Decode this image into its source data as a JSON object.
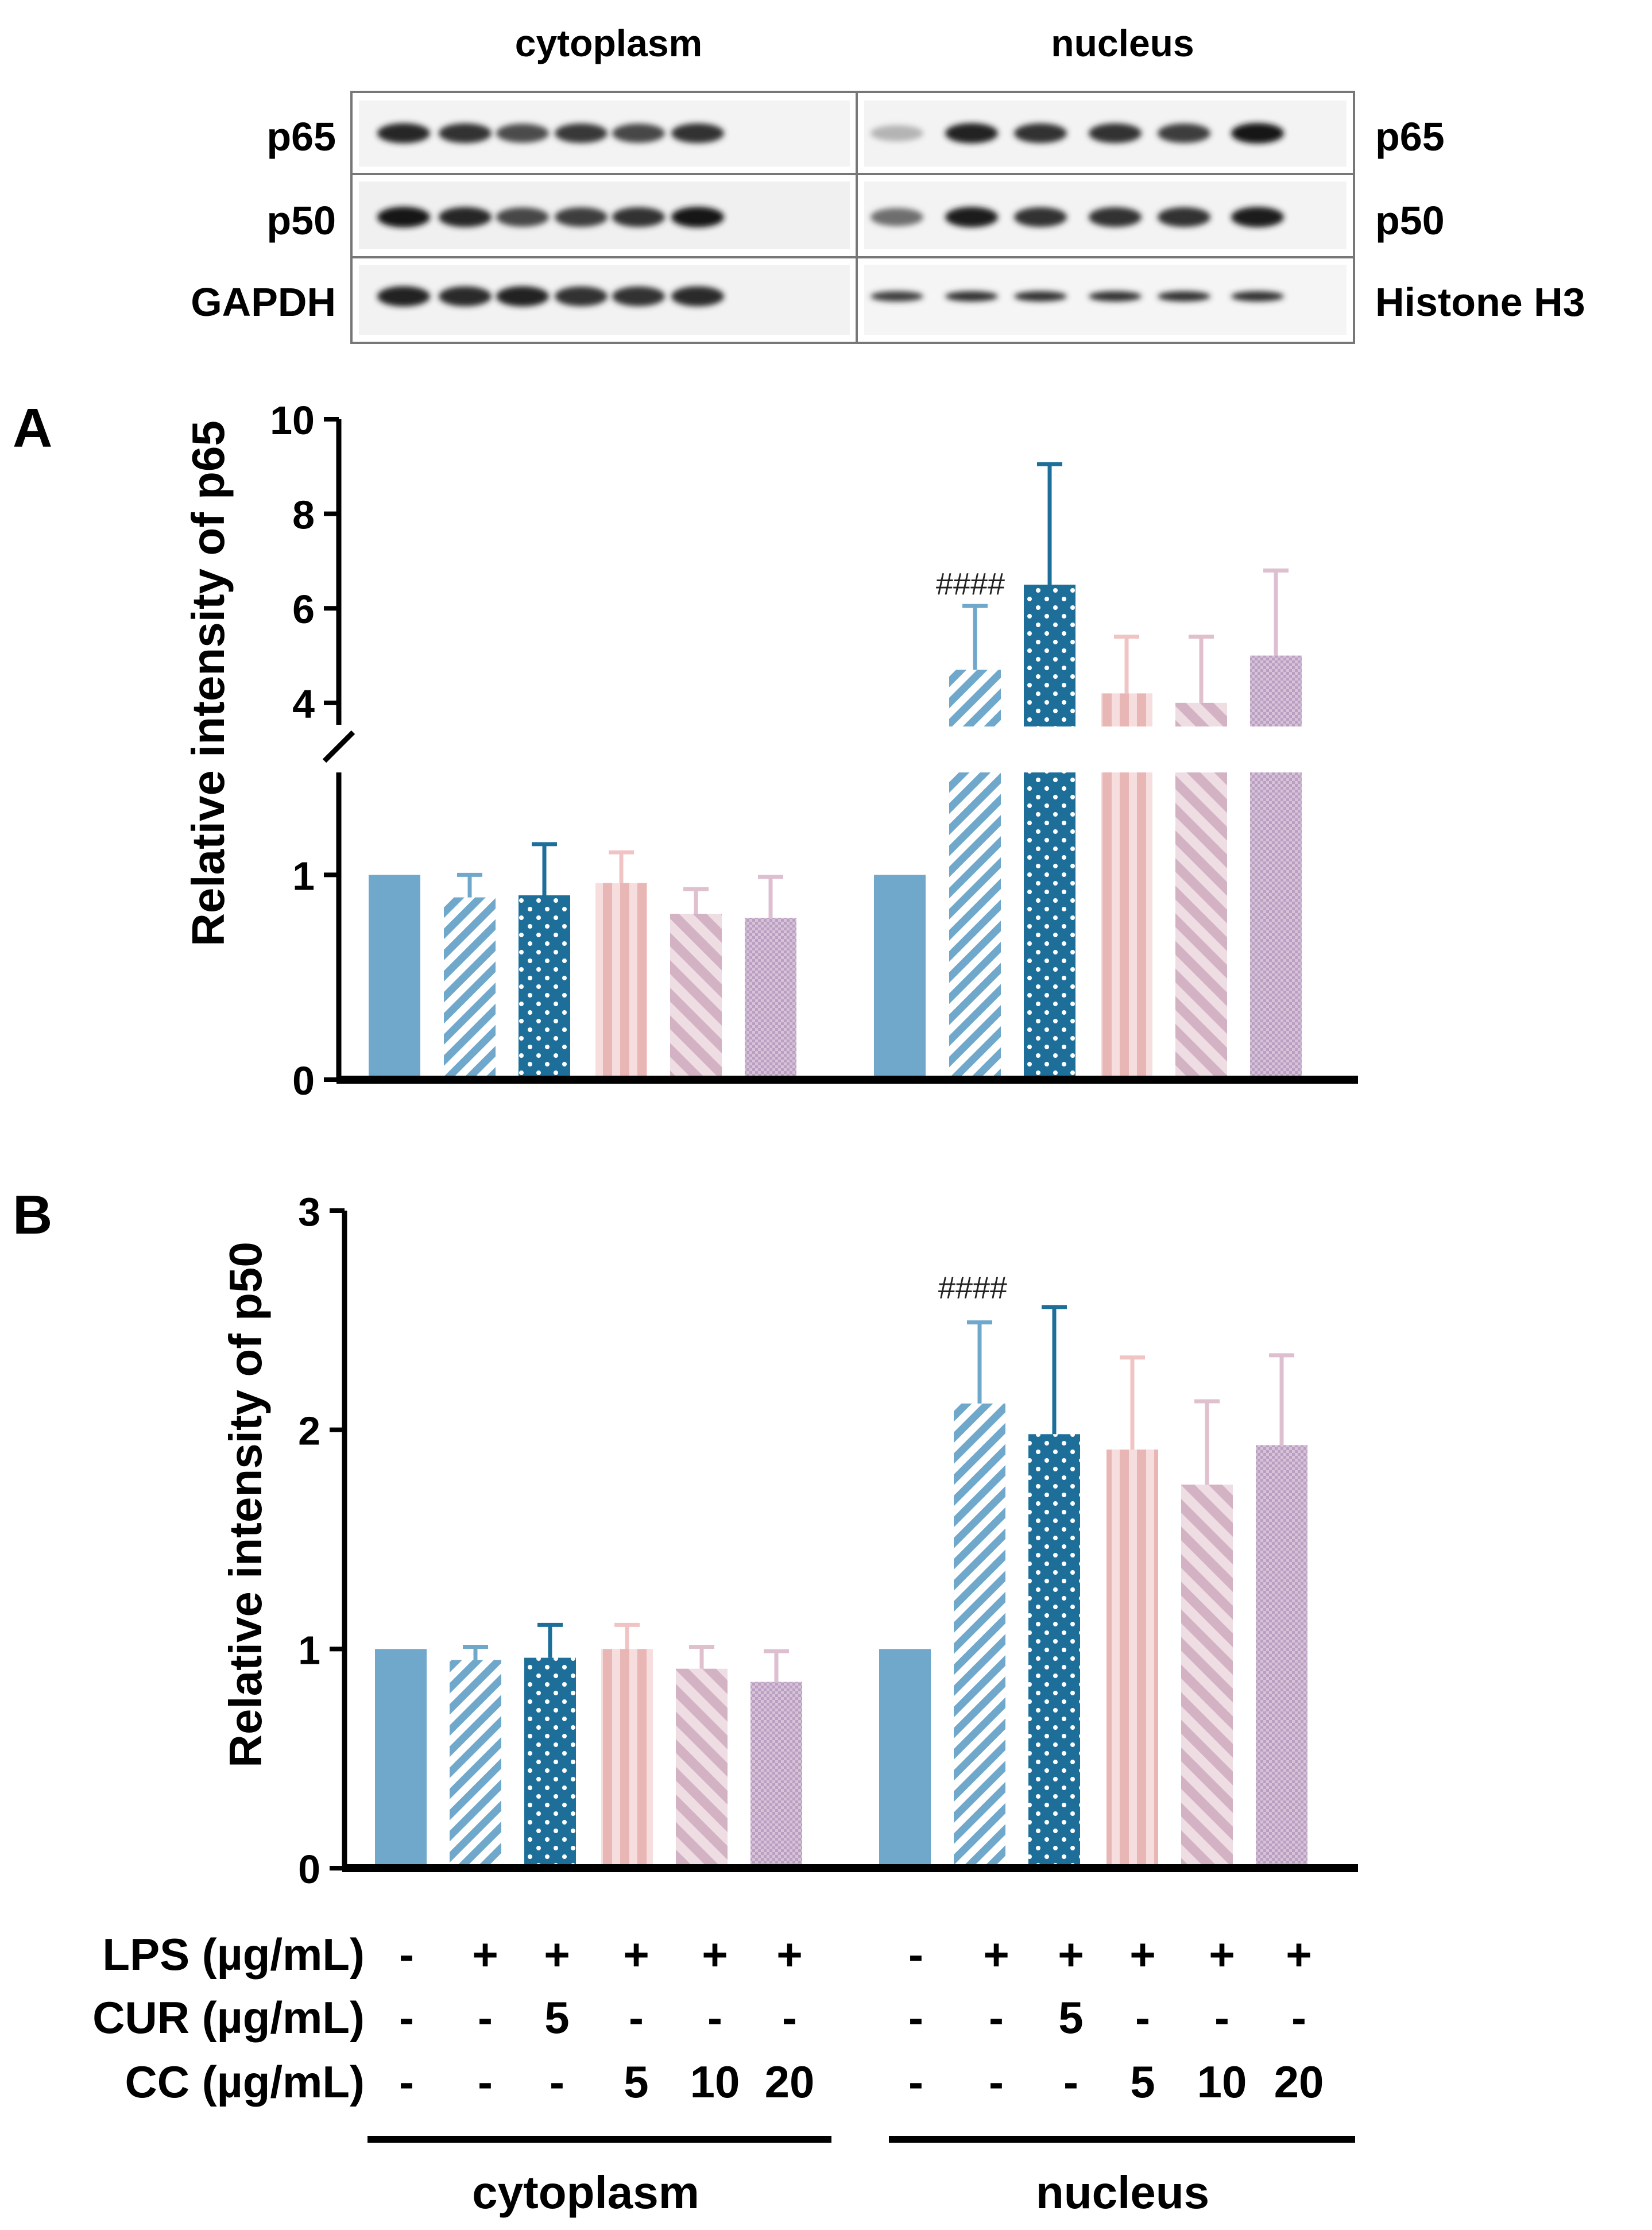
{
  "blot": {
    "headers": {
      "cytoplasm": "cytoplasm",
      "nucleus": "nucleus"
    },
    "left_labels": [
      "p65",
      "p50",
      "GAPDH"
    ],
    "right_labels": [
      "p65",
      "p50",
      "Histone H3"
    ],
    "band_intensity": {
      "cytoplasm": [
        [
          0.9,
          0.85,
          0.72,
          0.82,
          0.75,
          0.85
        ],
        [
          1.0,
          0.9,
          0.75,
          0.8,
          0.85,
          0.98
        ],
        [
          0.92,
          0.88,
          0.92,
          0.85,
          0.85,
          0.88
        ]
      ],
      "nucleus": [
        [
          0.2,
          0.92,
          0.85,
          0.85,
          0.8,
          0.98
        ],
        [
          0.55,
          0.95,
          0.85,
          0.85,
          0.85,
          0.95
        ],
        [
          0.8,
          0.85,
          0.85,
          0.85,
          0.85,
          0.85
        ]
      ]
    }
  },
  "colors": {
    "blue_light": "#6fa8cb",
    "blue_dark": "#1d6f9a",
    "pink_light": "#e9b6b6",
    "pink_dark": "#ccaab8",
    "lavender": "#c7abc9",
    "axis": "#000000"
  },
  "chart_data": [
    {
      "panel": "A",
      "type": "bar",
      "ylabel": "Relative intensity of p65",
      "axis_break": true,
      "yticks_lower": [
        0,
        1
      ],
      "yticks_upper": [
        4,
        6,
        8,
        10
      ],
      "ylim_lower": [
        0,
        1.5
      ],
      "ylim_upper": [
        3.5,
        10
      ],
      "groups": [
        "cytoplasm",
        "nucleus"
      ],
      "annotation": {
        "text": "####",
        "group": "nucleus",
        "bar": 1
      },
      "series": [
        {
          "group": "cytoplasm",
          "values": [
            1.0,
            0.89,
            0.9,
            0.96,
            0.81,
            0.79
          ],
          "errors": [
            0,
            0.11,
            0.25,
            0.15,
            0.12,
            0.2
          ]
        },
        {
          "group": "nucleus",
          "values": [
            1.0,
            4.7,
            6.5,
            4.2,
            4.0,
            5.0
          ],
          "errors": [
            0,
            1.35,
            2.55,
            1.2,
            1.4,
            1.8
          ]
        }
      ]
    },
    {
      "panel": "B",
      "type": "bar",
      "ylabel": "Relative intensity of p50",
      "yticks": [
        0,
        1,
        2,
        3
      ],
      "ylim": [
        0,
        3
      ],
      "groups": [
        "cytoplasm",
        "nucleus"
      ],
      "annotation": {
        "text": "####",
        "group": "nucleus",
        "bar": 1
      },
      "series": [
        {
          "group": "cytoplasm",
          "values": [
            1.0,
            0.95,
            0.96,
            1.0,
            0.91,
            0.85
          ],
          "errors": [
            0,
            0.06,
            0.15,
            0.11,
            0.1,
            0.14
          ]
        },
        {
          "group": "nucleus",
          "values": [
            1.0,
            2.12,
            1.98,
            1.91,
            1.75,
            1.93
          ],
          "errors": [
            0,
            0.37,
            0.58,
            0.42,
            0.38,
            0.41
          ]
        }
      ]
    }
  ],
  "treatments": {
    "rows": [
      {
        "label": "LPS (µg/mL)",
        "values": [
          "-",
          "+",
          "+",
          "+",
          "+",
          "+",
          "-",
          "+",
          "+",
          "+",
          "+",
          "+"
        ]
      },
      {
        "label": "CUR (µg/mL)",
        "values": [
          "-",
          "-",
          "5",
          "-",
          "-",
          "-",
          "-",
          "-",
          "5",
          "-",
          "-",
          "-"
        ]
      },
      {
        "label": "CC (µg/mL)",
        "values": [
          "-",
          "-",
          "-",
          "5",
          "10",
          "20",
          "-",
          "-",
          "-",
          "5",
          "10",
          "20"
        ]
      }
    ],
    "groups": [
      "cytoplasm",
      "nucleus"
    ]
  }
}
